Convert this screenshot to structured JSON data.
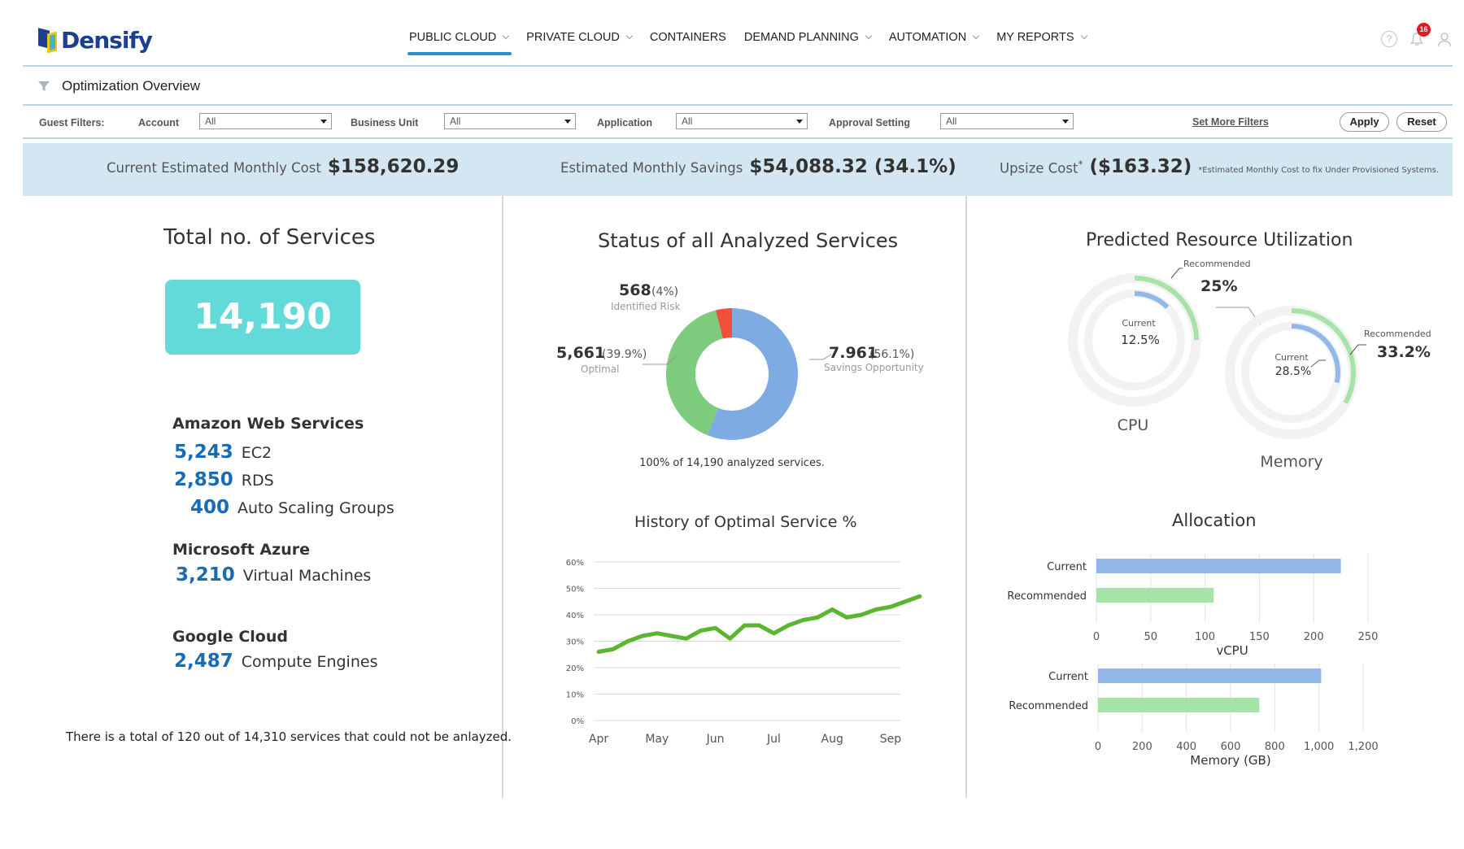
{
  "brand": {
    "name": "Densify"
  },
  "nav": {
    "items": [
      {
        "label": "PUBLIC CLOUD",
        "active": true,
        "dropdown": true
      },
      {
        "label": "PRIVATE CLOUD",
        "active": false,
        "dropdown": true
      },
      {
        "label": "CONTAINERS",
        "active": false,
        "dropdown": false
      },
      {
        "label": "DEMAND PLANNING",
        "active": false,
        "dropdown": true
      },
      {
        "label": "AUTOMATION",
        "active": false,
        "dropdown": true
      },
      {
        "label": "MY REPORTS",
        "active": false,
        "dropdown": true
      }
    ],
    "notification_count": "16",
    "icons": [
      "help-icon",
      "bell-icon",
      "user-icon"
    ]
  },
  "page": {
    "title": "Optimization Overview"
  },
  "filters": {
    "heading": "Guest Filters:",
    "account_label": "Account",
    "account_value": "All",
    "business_unit_label": "Business Unit",
    "business_unit_value": "All",
    "application_label": "Application",
    "application_value": "All",
    "approval_label": "Approval Setting",
    "approval_value": "All",
    "more_filters": "Set More Filters",
    "apply": "Apply",
    "reset": "Reset"
  },
  "costs": {
    "current_label": "Current Estimated Monthly Cost",
    "current_value": "$158,620.29",
    "savings_label": "Estimated Monthly Savings",
    "savings_value": "$54,088.32 (34.1%)",
    "upsize_label": "Upsize Cost",
    "upsize_star": "*",
    "upsize_value": "($163.32)",
    "upsize_note": "*Estimated Monthly Cost to fix Under Provisioned Systems."
  },
  "services": {
    "title": "Total no. of  Services",
    "total": "14,190",
    "aws": {
      "name": "Amazon Web Services",
      "rows": [
        {
          "count": "5,243",
          "label": "EC2"
        },
        {
          "count": "2,850",
          "label": "RDS"
        },
        {
          "count": "400",
          "label": "Auto Scaling Groups"
        }
      ]
    },
    "azure": {
      "name": "Microsoft Azure",
      "rows": [
        {
          "count": "3,210",
          "label": "Virtual Machines"
        }
      ]
    },
    "gcp": {
      "name": "Google Cloud",
      "rows": [
        {
          "count": "2,487",
          "label": "Compute Engines"
        }
      ]
    },
    "footnote": "There is a total of 120 out of 14,310 services that could not be anlayzed."
  },
  "status": {
    "title": "Status of all Analyzed Services",
    "footer": "100% of 14,190 analyzed services.",
    "risk": {
      "value": "568",
      "pct": "(4%)",
      "label": "Identified Risk"
    },
    "optimal": {
      "value": "5,661",
      "pct": "(39.9%)",
      "label": "Optimal"
    },
    "savings": {
      "value": "7.961",
      "pct": "(56.1%)",
      "label": "Savings Opportunity"
    }
  },
  "history": {
    "title": "History of Optimal Service %"
  },
  "utilization": {
    "title": "Predicted Resource Utilization",
    "cpu": {
      "name": "CPU",
      "current_label": "Current",
      "current": "12.5%",
      "recommended_label": "Recommended",
      "recommended": "25%"
    },
    "memory": {
      "name": "Memory",
      "current_label": "Current",
      "current": "28.5%",
      "recommended_label": "Recommended",
      "recommended": "33.2%"
    }
  },
  "allocation": {
    "title": "Allocation"
  },
  "colors": {
    "savings_blue": "#7fabe3",
    "optimal_green": "#7dcb7d",
    "risk_red": "#f0503c",
    "line_green": "#5cb531",
    "recommended_green": "#a6e3a6",
    "current_blue": "#91b8e8",
    "accent_teal": "#63dada",
    "band_blue": "#d3e6f2"
  },
  "chart_data": [
    {
      "type": "pie",
      "donut": true,
      "title": "Status of all Analyzed Services",
      "categories": [
        "Savings Opportunity",
        "Optimal",
        "Identified Risk"
      ],
      "values": [
        7961,
        5661,
        568
      ],
      "percent": [
        56.1,
        39.9,
        4
      ],
      "colors": [
        "#7fabe3",
        "#7dcb7d",
        "#f0503c"
      ]
    },
    {
      "type": "line",
      "title": "History of Optimal Service %",
      "x_ticks": [
        "Apr",
        "May",
        "Jun",
        "Jul",
        "Aug",
        "Sep"
      ],
      "y_ticks": [
        "0%",
        "10%",
        "20%",
        "30%",
        "40%",
        "50%",
        "60%"
      ],
      "ylim": [
        0,
        60
      ],
      "grid": true,
      "series": [
        {
          "color": "#5cb531",
          "x": [
            0,
            0.25,
            0.5,
            0.75,
            1,
            1.25,
            1.5,
            1.75,
            2,
            2.25,
            2.5,
            2.75,
            3,
            3.25,
            3.5,
            3.75,
            4,
            4.25,
            4.5,
            4.75,
            5,
            5.25,
            5.5
          ],
          "y": [
            26,
            27,
            30,
            32,
            33,
            32,
            31,
            34,
            35,
            31,
            36,
            36,
            33,
            36,
            38,
            39,
            42,
            39,
            40,
            42,
            43,
            45,
            47
          ]
        }
      ]
    },
    {
      "type": "pie",
      "donut": true,
      "title": "CPU",
      "categories": [
        "Current",
        "Recommended"
      ],
      "values": [
        12.5,
        25
      ]
    },
    {
      "type": "pie",
      "donut": true,
      "title": "Memory",
      "categories": [
        "Current",
        "Recommended"
      ],
      "values": [
        28.5,
        33.2
      ]
    },
    {
      "type": "bar",
      "orientation": "horizontal",
      "xlabel": "vCPU",
      "categories": [
        "Current",
        "Recommended"
      ],
      "values": [
        225,
        108
      ],
      "xlim": [
        0,
        250
      ],
      "x_ticks": [
        "0",
        "50",
        "100",
        "150",
        "200",
        "250"
      ],
      "colors": [
        "#91b8e8",
        "#a6e3a6"
      ]
    },
    {
      "type": "bar",
      "orientation": "horizontal",
      "xlabel": "Memory (GB)",
      "categories": [
        "Current",
        "Recommended"
      ],
      "values": [
        1010,
        730
      ],
      "xlim": [
        0,
        1200
      ],
      "x_ticks": [
        "0",
        "200",
        "400",
        "600",
        "800",
        "1,000",
        "1,200"
      ],
      "colors": [
        "#91b8e8",
        "#a6e3a6"
      ]
    }
  ]
}
